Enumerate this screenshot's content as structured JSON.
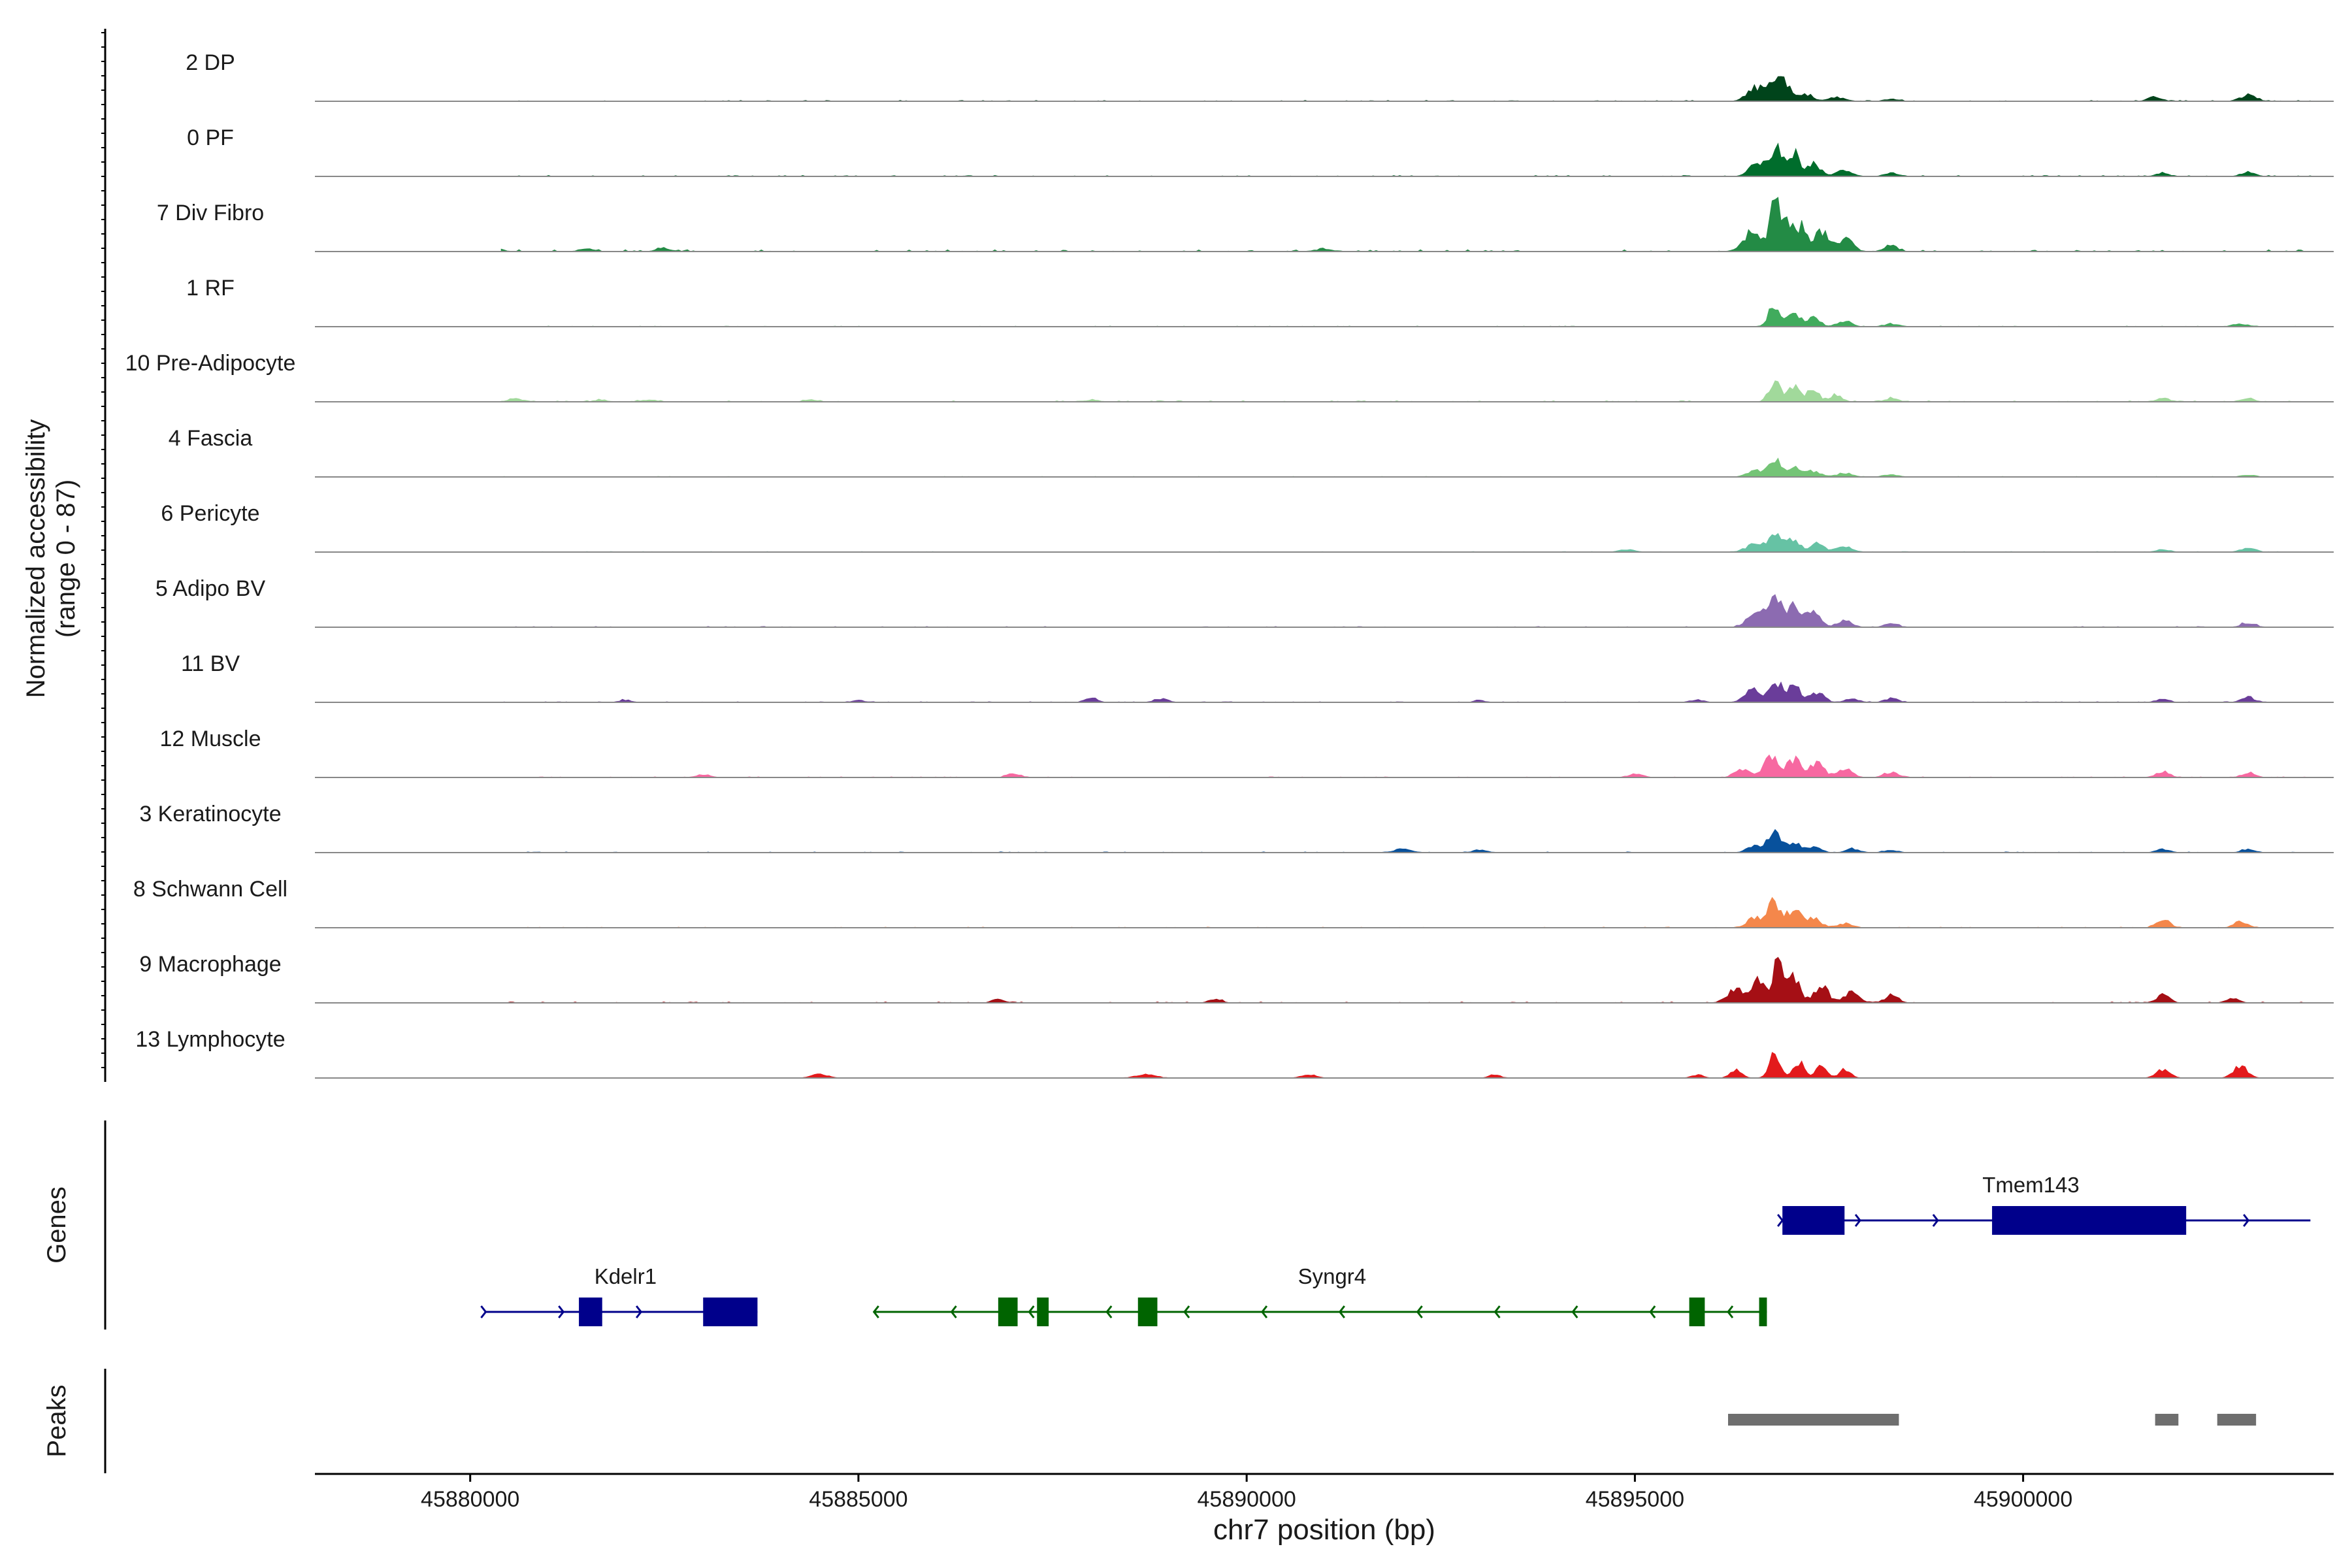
{
  "chart_data": {
    "type": "genome-coverage-tracks",
    "region": "chr7",
    "xlim": [
      45878000,
      45904000
    ],
    "xticks": [
      45880000,
      45885000,
      45890000,
      45895000,
      45900000
    ],
    "xtick_labels": [
      "45880000",
      "45885000",
      "45890000",
      "45895000",
      "45900000"
    ],
    "xlabel": "chr7 position (bp)",
    "ylabel_line1": "Normalized accessibility",
    "ylabel_line2": "(range 0 - 87)",
    "ylim": [
      0,
      87
    ],
    "coverage_tracks": [
      {
        "label": "2 DP",
        "color": "#00441b",
        "scale": 0.55,
        "bg": 0.04,
        "peaks": [
          [
            45896550,
            0.35,
            150
          ],
          [
            45896800,
            0.6,
            120
          ],
          [
            45896950,
            0.4,
            100
          ],
          [
            45897200,
            0.2,
            120
          ],
          [
            45897600,
            0.1,
            150
          ],
          [
            45898300,
            0.06,
            120
          ],
          [
            45901700,
            0.12,
            120
          ],
          [
            45902900,
            0.16,
            140
          ]
        ]
      },
      {
        "label": "0 PF",
        "color": "#006d2c",
        "scale": 0.62,
        "bg": 0.04,
        "peaks": [
          [
            45896600,
            0.35,
            150
          ],
          [
            45896850,
            0.65,
            120
          ],
          [
            45897050,
            0.5,
            100
          ],
          [
            45897300,
            0.3,
            120
          ],
          [
            45897700,
            0.15,
            140
          ],
          [
            45898300,
            0.08,
            120
          ],
          [
            45901800,
            0.08,
            120
          ],
          [
            45902900,
            0.1,
            130
          ]
        ]
      },
      {
        "label": "7 Div Fibro",
        "color": "#238b45",
        "scale": 0.92,
        "bg": 0.05,
        "peaks": [
          [
            45896500,
            0.3,
            160
          ],
          [
            45896800,
            0.75,
            90
          ],
          [
            45896950,
            0.55,
            100
          ],
          [
            45897150,
            0.4,
            100
          ],
          [
            45897400,
            0.3,
            130
          ],
          [
            45897700,
            0.2,
            140
          ],
          [
            45898300,
            0.1,
            120
          ],
          [
            45880300,
            0.05,
            150
          ],
          [
            45881500,
            0.04,
            140
          ],
          [
            45882500,
            0.05,
            140
          ],
          [
            45891000,
            0.04,
            160
          ]
        ]
      },
      {
        "label": "1 RF",
        "color": "#41ab5d",
        "scale": 0.5,
        "bg": 0.03,
        "peaks": [
          [
            45896800,
            0.65,
            110
          ],
          [
            45897050,
            0.35,
            110
          ],
          [
            45897300,
            0.25,
            120
          ],
          [
            45897700,
            0.18,
            120
          ],
          [
            45898300,
            0.09,
            120
          ],
          [
            45902800,
            0.08,
            140
          ]
        ]
      },
      {
        "label": "10 Pre-Adipocyte",
        "color": "#a1d99b",
        "scale": 0.55,
        "bg": 0.05,
        "peaks": [
          [
            45896800,
            0.55,
            100
          ],
          [
            45897050,
            0.45,
            100
          ],
          [
            45897300,
            0.38,
            100
          ],
          [
            45897600,
            0.2,
            100
          ],
          [
            45898300,
            0.09,
            120
          ],
          [
            45880600,
            0.08,
            150
          ],
          [
            45881700,
            0.04,
            120
          ],
          [
            45882300,
            0.05,
            140
          ],
          [
            45884400,
            0.05,
            120
          ],
          [
            45888000,
            0.04,
            160
          ],
          [
            45901800,
            0.1,
            120
          ],
          [
            45902900,
            0.09,
            120
          ]
        ]
      },
      {
        "label": "4 Fascia",
        "color": "#74c476",
        "scale": 0.45,
        "bg": 0.03,
        "peaks": [
          [
            45896550,
            0.2,
            140
          ],
          [
            45896800,
            0.6,
            110
          ],
          [
            45897050,
            0.3,
            110
          ],
          [
            45897300,
            0.2,
            120
          ],
          [
            45897700,
            0.12,
            140
          ],
          [
            45898300,
            0.08,
            120
          ],
          [
            45902900,
            0.06,
            130
          ]
        ]
      },
      {
        "label": "6 Pericyte",
        "color": "#66c2a4",
        "scale": 0.42,
        "bg": 0.03,
        "peaks": [
          [
            45894900,
            0.08,
            140
          ],
          [
            45896550,
            0.3,
            160
          ],
          [
            45896800,
            0.55,
            120
          ],
          [
            45897050,
            0.45,
            120
          ],
          [
            45897350,
            0.3,
            120
          ],
          [
            45897700,
            0.2,
            150
          ],
          [
            45901800,
            0.08,
            120
          ],
          [
            45902900,
            0.14,
            130
          ]
        ]
      },
      {
        "label": "5 Adipo BV",
        "color": "#8c6bb1",
        "scale": 0.65,
        "bg": 0.03,
        "peaks": [
          [
            45896550,
            0.3,
            150
          ],
          [
            45896800,
            0.7,
            120
          ],
          [
            45897050,
            0.5,
            120
          ],
          [
            45897300,
            0.3,
            130
          ],
          [
            45897700,
            0.14,
            140
          ],
          [
            45898300,
            0.08,
            120
          ],
          [
            45902900,
            0.1,
            130
          ]
        ]
      },
      {
        "label": "11 BV",
        "color": "#6a3d9a",
        "scale": 0.58,
        "bg": 0.03,
        "peaks": [
          [
            45896500,
            0.35,
            130
          ],
          [
            45896800,
            0.55,
            120
          ],
          [
            45897050,
            0.4,
            120
          ],
          [
            45897350,
            0.25,
            120
          ],
          [
            45897800,
            0.1,
            120
          ],
          [
            45898300,
            0.1,
            120
          ],
          [
            45882000,
            0.06,
            100
          ],
          [
            45885000,
            0.06,
            100
          ],
          [
            45888000,
            0.12,
            100
          ],
          [
            45888900,
            0.09,
            120
          ],
          [
            45893000,
            0.05,
            100
          ],
          [
            45895800,
            0.06,
            120
          ],
          [
            45902900,
            0.13,
            120
          ],
          [
            45901800,
            0.08,
            120
          ]
        ]
      },
      {
        "label": "12 Muscle",
        "color": "#f768a1",
        "scale": 0.55,
        "bg": 0.03,
        "peaks": [
          [
            45896400,
            0.25,
            140
          ],
          [
            45896750,
            0.6,
            120
          ],
          [
            45897050,
            0.5,
            120
          ],
          [
            45897350,
            0.4,
            120
          ],
          [
            45897700,
            0.25,
            130
          ],
          [
            45898300,
            0.15,
            120
          ],
          [
            45883000,
            0.08,
            120
          ],
          [
            45887000,
            0.1,
            120
          ],
          [
            45895000,
            0.1,
            120
          ],
          [
            45901800,
            0.15,
            120
          ],
          [
            45902900,
            0.12,
            120
          ]
        ]
      },
      {
        "label": "3 Keratinocyte",
        "color": "#08519c",
        "scale": 0.48,
        "bg": 0.04,
        "peaks": [
          [
            45896550,
            0.2,
            140
          ],
          [
            45896800,
            0.65,
            110
          ],
          [
            45897050,
            0.35,
            110
          ],
          [
            45897300,
            0.2,
            120
          ],
          [
            45897800,
            0.12,
            120
          ],
          [
            45898300,
            0.08,
            120
          ],
          [
            45892000,
            0.1,
            160
          ],
          [
            45893000,
            0.07,
            140
          ],
          [
            45901800,
            0.1,
            120
          ],
          [
            45902900,
            0.1,
            120
          ]
        ]
      },
      {
        "label": "8 Schwann Cell",
        "color": "#f4874b",
        "scale": 0.55,
        "bg": 0.03,
        "peaks": [
          [
            45896550,
            0.25,
            150
          ],
          [
            45896800,
            0.65,
            120
          ],
          [
            45897050,
            0.45,
            120
          ],
          [
            45897300,
            0.25,
            130
          ],
          [
            45897700,
            0.12,
            140
          ],
          [
            45901800,
            0.22,
            120
          ],
          [
            45902800,
            0.16,
            120
          ]
        ]
      },
      {
        "label": "9 Macrophage",
        "color": "#a50f15",
        "scale": 0.8,
        "bg": 0.03,
        "peaks": [
          [
            45896300,
            0.25,
            150
          ],
          [
            45896600,
            0.4,
            140
          ],
          [
            45896850,
            0.75,
            90
          ],
          [
            45897050,
            0.5,
            110
          ],
          [
            45897400,
            0.3,
            130
          ],
          [
            45897800,
            0.2,
            130
          ],
          [
            45898300,
            0.14,
            120
          ],
          [
            45886800,
            0.08,
            100
          ],
          [
            45889600,
            0.08,
            100
          ],
          [
            45901800,
            0.15,
            120
          ],
          [
            45902700,
            0.07,
            120
          ]
        ]
      },
      {
        "label": "13 Lymphocyte",
        "color": "#e31a1c",
        "scale": 0.62,
        "bg": 0.0,
        "peaks": [
          [
            45896300,
            0.2,
            100
          ],
          [
            45896800,
            0.55,
            100
          ],
          [
            45897100,
            0.4,
            100
          ],
          [
            45897400,
            0.3,
            100
          ],
          [
            45897700,
            0.2,
            100
          ],
          [
            45884500,
            0.08,
            150
          ],
          [
            45888700,
            0.08,
            180
          ],
          [
            45890800,
            0.08,
            130
          ],
          [
            45893200,
            0.08,
            100
          ],
          [
            45895800,
            0.08,
            100
          ],
          [
            45901800,
            0.22,
            120
          ],
          [
            45902800,
            0.32,
            120
          ]
        ]
      }
    ],
    "genes_track_label": "Genes",
    "genes": [
      {
        "name": "Kdelr1",
        "strand": "+",
        "start": 45880200,
        "end": 45883700,
        "row": 2,
        "color": "#00008b",
        "exons": [
          [
            45881400,
            45881700
          ],
          [
            45883000,
            45883700
          ]
        ]
      },
      {
        "name": "Syngr4",
        "strand": "-",
        "start": 45885200,
        "end": 45896700,
        "row": 2,
        "color": "#006400",
        "exons": [
          [
            45886800,
            45887050
          ],
          [
            45887300,
            45887450
          ],
          [
            45888600,
            45888850
          ],
          [
            45895700,
            45895900
          ],
          [
            45896600,
            45896700
          ]
        ]
      },
      {
        "name": "Tmem143",
        "strand": "+",
        "start": 45896900,
        "end": 45903700,
        "row": 1,
        "color": "#00008b",
        "exons": [
          [
            45896900,
            45897700
          ],
          [
            45899600,
            45902100
          ]
        ]
      }
    ],
    "peaks_track_label": "Peaks",
    "peak_regions": [
      [
        45896200,
        45898400
      ],
      [
        45901700,
        45902000
      ],
      [
        45902500,
        45903000
      ]
    ]
  }
}
